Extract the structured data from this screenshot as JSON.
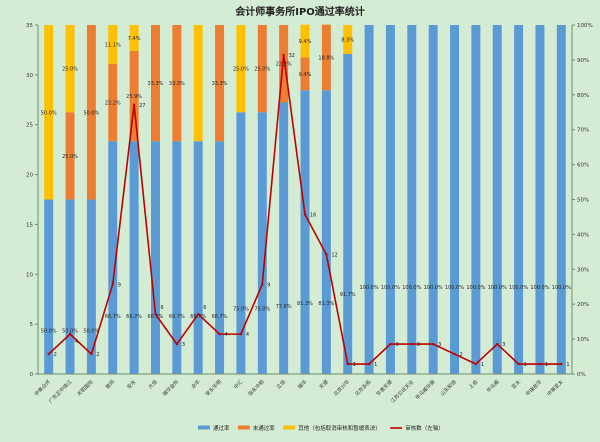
{
  "chart_data": {
    "type": "bar",
    "title": "会计师事务所IPO通过率统计",
    "xlabel": "",
    "ylabel_left": "",
    "ylabel_right": "",
    "y_left": {
      "min": 0,
      "max": 35,
      "step": 5,
      "ticks": [
        "0",
        "5",
        "10",
        "15",
        "20",
        "25",
        "30",
        "35"
      ]
    },
    "y_right": {
      "min": 0,
      "max": 1,
      "step": 0.1,
      "ticks": [
        "0%",
        "10%",
        "20%",
        "30%",
        "40%",
        "50%",
        "60%",
        "70%",
        "80%",
        "90%",
        "100%"
      ]
    },
    "grid": false,
    "legend_position": "bottom",
    "legend": [
      {
        "name": "通过率",
        "color": "#5b9bd5",
        "kind": "bar"
      },
      {
        "name": "未通过率",
        "color": "#ed7d31",
        "kind": "bar"
      },
      {
        "name": "其他（包括取消审核和暂缓表决）",
        "color": "#ffc000",
        "kind": "bar"
      },
      {
        "name": "审核数（左轴）",
        "color": "#c00000",
        "kind": "line"
      }
    ],
    "categories": [
      "中审众环",
      "广东正中珠江",
      "天职国际",
      "致同",
      "安永",
      "大信",
      "瑞华会所",
      "众华",
      "安永华明",
      "中汇",
      "信永中和",
      "立信",
      "瑞华",
      "天健",
      "北京兴华",
      "北京永拓",
      "华普天健",
      "江苏公证天业",
      "毕马威华振",
      "山东和信",
      "上会",
      "毕马威",
      "亚太",
      "中瑞岳华",
      "中审亚太"
    ],
    "series": [
      {
        "name": "通过率",
        "axis": "right",
        "values": [
          0.5,
          0.5,
          0.5,
          0.667,
          0.667,
          0.667,
          0.667,
          0.667,
          0.667,
          0.75,
          0.75,
          0.778,
          0.813,
          0.813,
          0.917,
          1,
          1,
          1,
          1,
          1,
          1,
          1,
          1,
          1,
          1
        ],
        "labels": [
          "50.0%",
          "50.0%",
          "50.0%",
          "66.7%",
          "66.7%",
          "66.7%",
          "66.7%",
          "66.7%",
          "66.7%",
          "75.0%",
          "75.0%",
          "77.8%",
          "81.3%",
          "81.3%",
          "91.7%",
          "100.0%",
          "100.0%",
          "100.0%",
          "100.0%",
          "100.0%",
          "100.0%",
          "100.0%",
          "100.0%",
          "100.0%",
          "100.0%"
        ]
      },
      {
        "name": "未通过率",
        "axis": "right",
        "values": [
          0,
          0.25,
          0.5,
          0.222,
          0.259,
          0.333,
          0.333,
          0,
          0.333,
          0,
          0.25,
          0.222,
          0.094,
          0.188,
          0,
          0,
          0,
          0,
          0,
          0,
          0,
          0,
          0,
          0,
          0
        ],
        "labels": [
          "",
          "25.0%",
          "50.0%",
          "22.2%",
          "25.9%",
          "33.3%",
          "33.3%",
          "",
          "33.3%",
          "",
          "25.0%",
          "22.2%",
          "9.4%",
          "18.8%",
          "",
          "",
          "",
          "",
          "",
          "",
          "",
          "",
          "",
          "",
          ""
        ]
      },
      {
        "name": "其他（包括取消审核和暂缓表决）",
        "axis": "right",
        "values": [
          0.5,
          0.25,
          0,
          0.111,
          0.074,
          0,
          0,
          0.333,
          0,
          0.25,
          0,
          0,
          0.094,
          0,
          0.083,
          0,
          0,
          0,
          0,
          0,
          0,
          0,
          0,
          0,
          0
        ],
        "labels": [
          "50.0%",
          "25.0%",
          "",
          "11.1%",
          "7.4%",
          "",
          "",
          "",
          "",
          "25.0%",
          "",
          "",
          "9.4%",
          "",
          "8.3%",
          "",
          "",
          "",
          "",
          "",
          "",
          "",
          "",
          "",
          ""
        ]
      },
      {
        "name": "审核数（左轴）",
        "axis": "left",
        "values": [
          2,
          4,
          2,
          9,
          27,
          6,
          3,
          6,
          4,
          4,
          9,
          32,
          16,
          12,
          1,
          1,
          3,
          3,
          3,
          2,
          1,
          3,
          1,
          1,
          1
        ],
        "labels": [
          "2",
          "4",
          "2",
          "9",
          "27",
          "6",
          "3",
          "6",
          "4",
          "4",
          "9",
          "32",
          "16",
          "12",
          "1",
          "1",
          "3",
          "3",
          "3",
          "2",
          "1",
          "3",
          "1",
          "1",
          "1"
        ]
      }
    ]
  }
}
